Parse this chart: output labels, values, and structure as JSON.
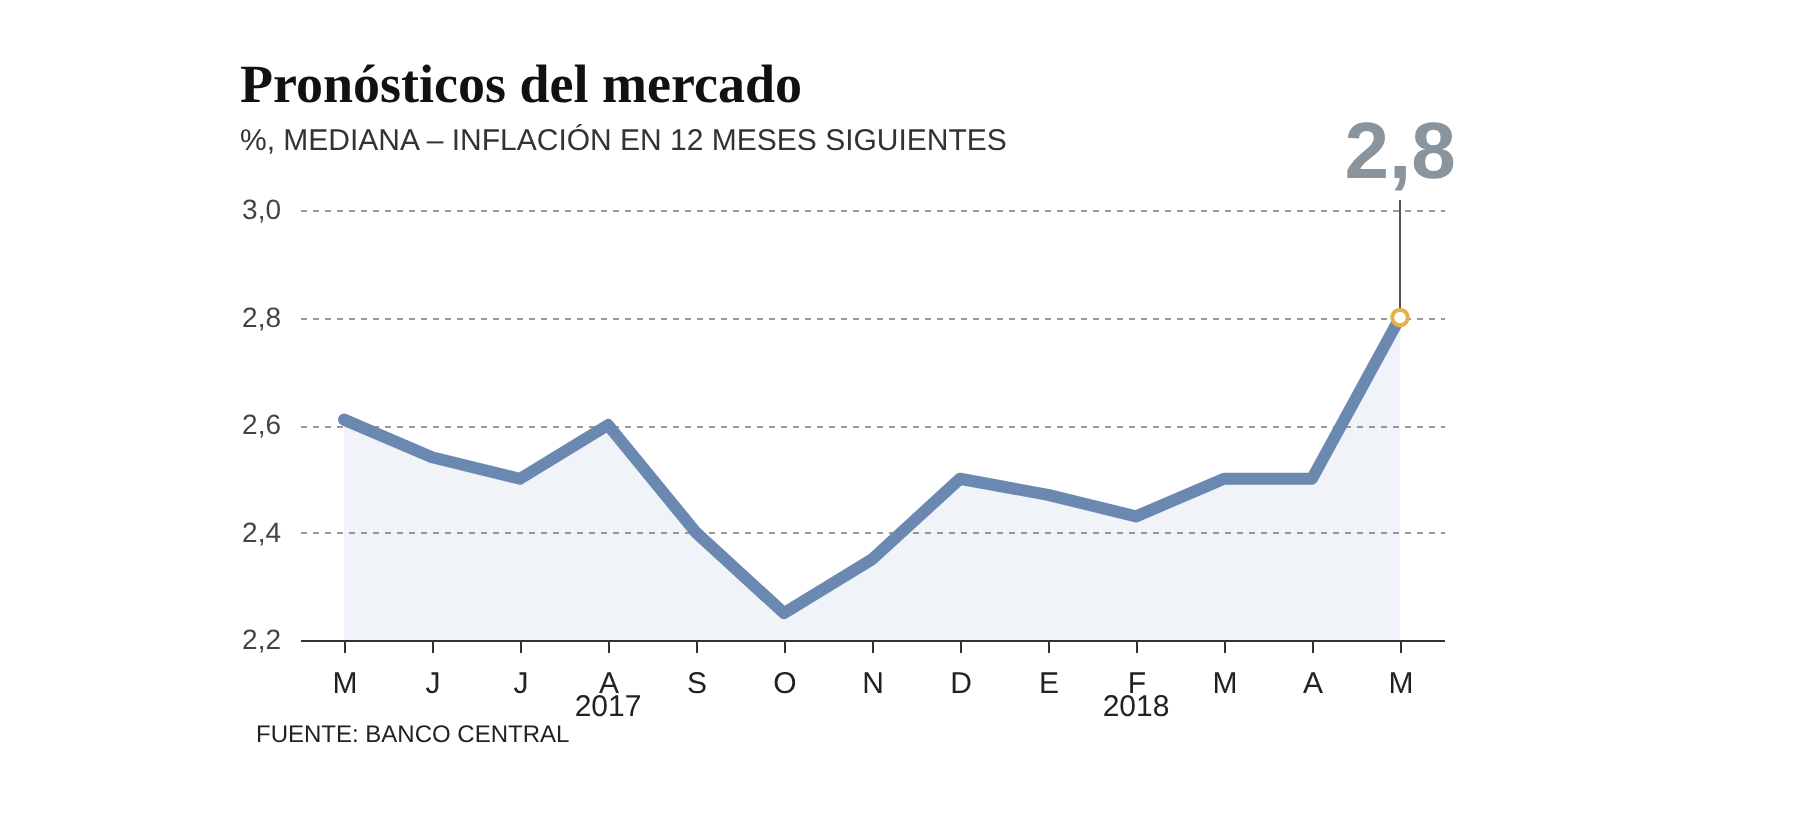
{
  "chart_data": {
    "type": "area",
    "title": "Pronósticos del mercado",
    "subtitle": "%, MEDIANA – INFLACIÓN EN 12 MESES SIGUIENTES",
    "categories": [
      "M",
      "J",
      "J",
      "A",
      "S",
      "O",
      "N",
      "D",
      "E",
      "F",
      "M",
      "A",
      "M"
    ],
    "series": [
      {
        "color": "#6a88b0",
        "values": [
          2.61,
          2.54,
          2.5,
          2.6,
          2.4,
          2.25,
          2.35,
          2.5,
          2.47,
          2.43,
          2.5,
          2.5,
          2.8
        ]
      }
    ],
    "ylim": [
      2.2,
      3.0
    ],
    "yticks": [
      {
        "value": 2.2,
        "label": "2,2"
      },
      {
        "value": 2.4,
        "label": "2,4"
      },
      {
        "value": 2.6,
        "label": "2,6"
      },
      {
        "value": 2.8,
        "label": "2,8"
      },
      {
        "value": 3.0,
        "label": "3,0"
      }
    ],
    "grid": "y",
    "annotations": [
      {
        "text": "2,8",
        "y": 2.8
      },
      "2017",
      "2018",
      "FUENTE: BANCO CENTRAL"
    ]
  }
}
